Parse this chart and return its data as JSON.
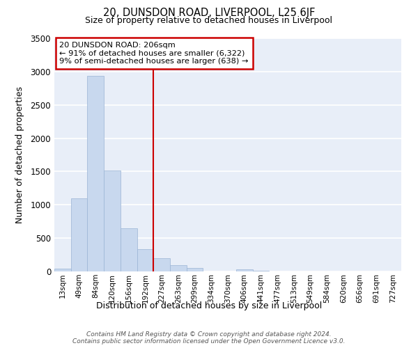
{
  "title": "20, DUNSDON ROAD, LIVERPOOL, L25 6JF",
  "subtitle": "Size of property relative to detached houses in Liverpool",
  "xlabel": "Distribution of detached houses by size in Liverpool",
  "ylabel": "Number of detached properties",
  "bar_color": "#c8d8ee",
  "bar_edgecolor": "#9ab4d4",
  "background_color": "#ffffff",
  "plot_bg_color": "#e8eef8",
  "grid_color": "#ffffff",
  "categories": [
    "13sqm",
    "49sqm",
    "84sqm",
    "120sqm",
    "156sqm",
    "192sqm",
    "227sqm",
    "263sqm",
    "299sqm",
    "334sqm",
    "370sqm",
    "406sqm",
    "441sqm",
    "477sqm",
    "513sqm",
    "549sqm",
    "584sqm",
    "620sqm",
    "656sqm",
    "691sqm",
    "727sqm"
  ],
  "values": [
    40,
    1100,
    2940,
    1510,
    650,
    330,
    200,
    90,
    50,
    0,
    0,
    30,
    10,
    0,
    0,
    0,
    0,
    0,
    0,
    0,
    0
  ],
  "ylim": [
    0,
    3500
  ],
  "yticks": [
    0,
    500,
    1000,
    1500,
    2000,
    2500,
    3000,
    3500
  ],
  "property_line_x": 5.5,
  "property_label": "20 DUNSDON ROAD: 206sqm",
  "annotation_line1": "← 91% of detached houses are smaller (6,322)",
  "annotation_line2": "9% of semi-detached houses are larger (638) →",
  "box_color": "#ffffff",
  "box_edgecolor": "#cc0000",
  "vline_color": "#cc0000",
  "footer_line1": "Contains HM Land Registry data © Crown copyright and database right 2024.",
  "footer_line2": "Contains public sector information licensed under the Open Government Licence v3.0."
}
